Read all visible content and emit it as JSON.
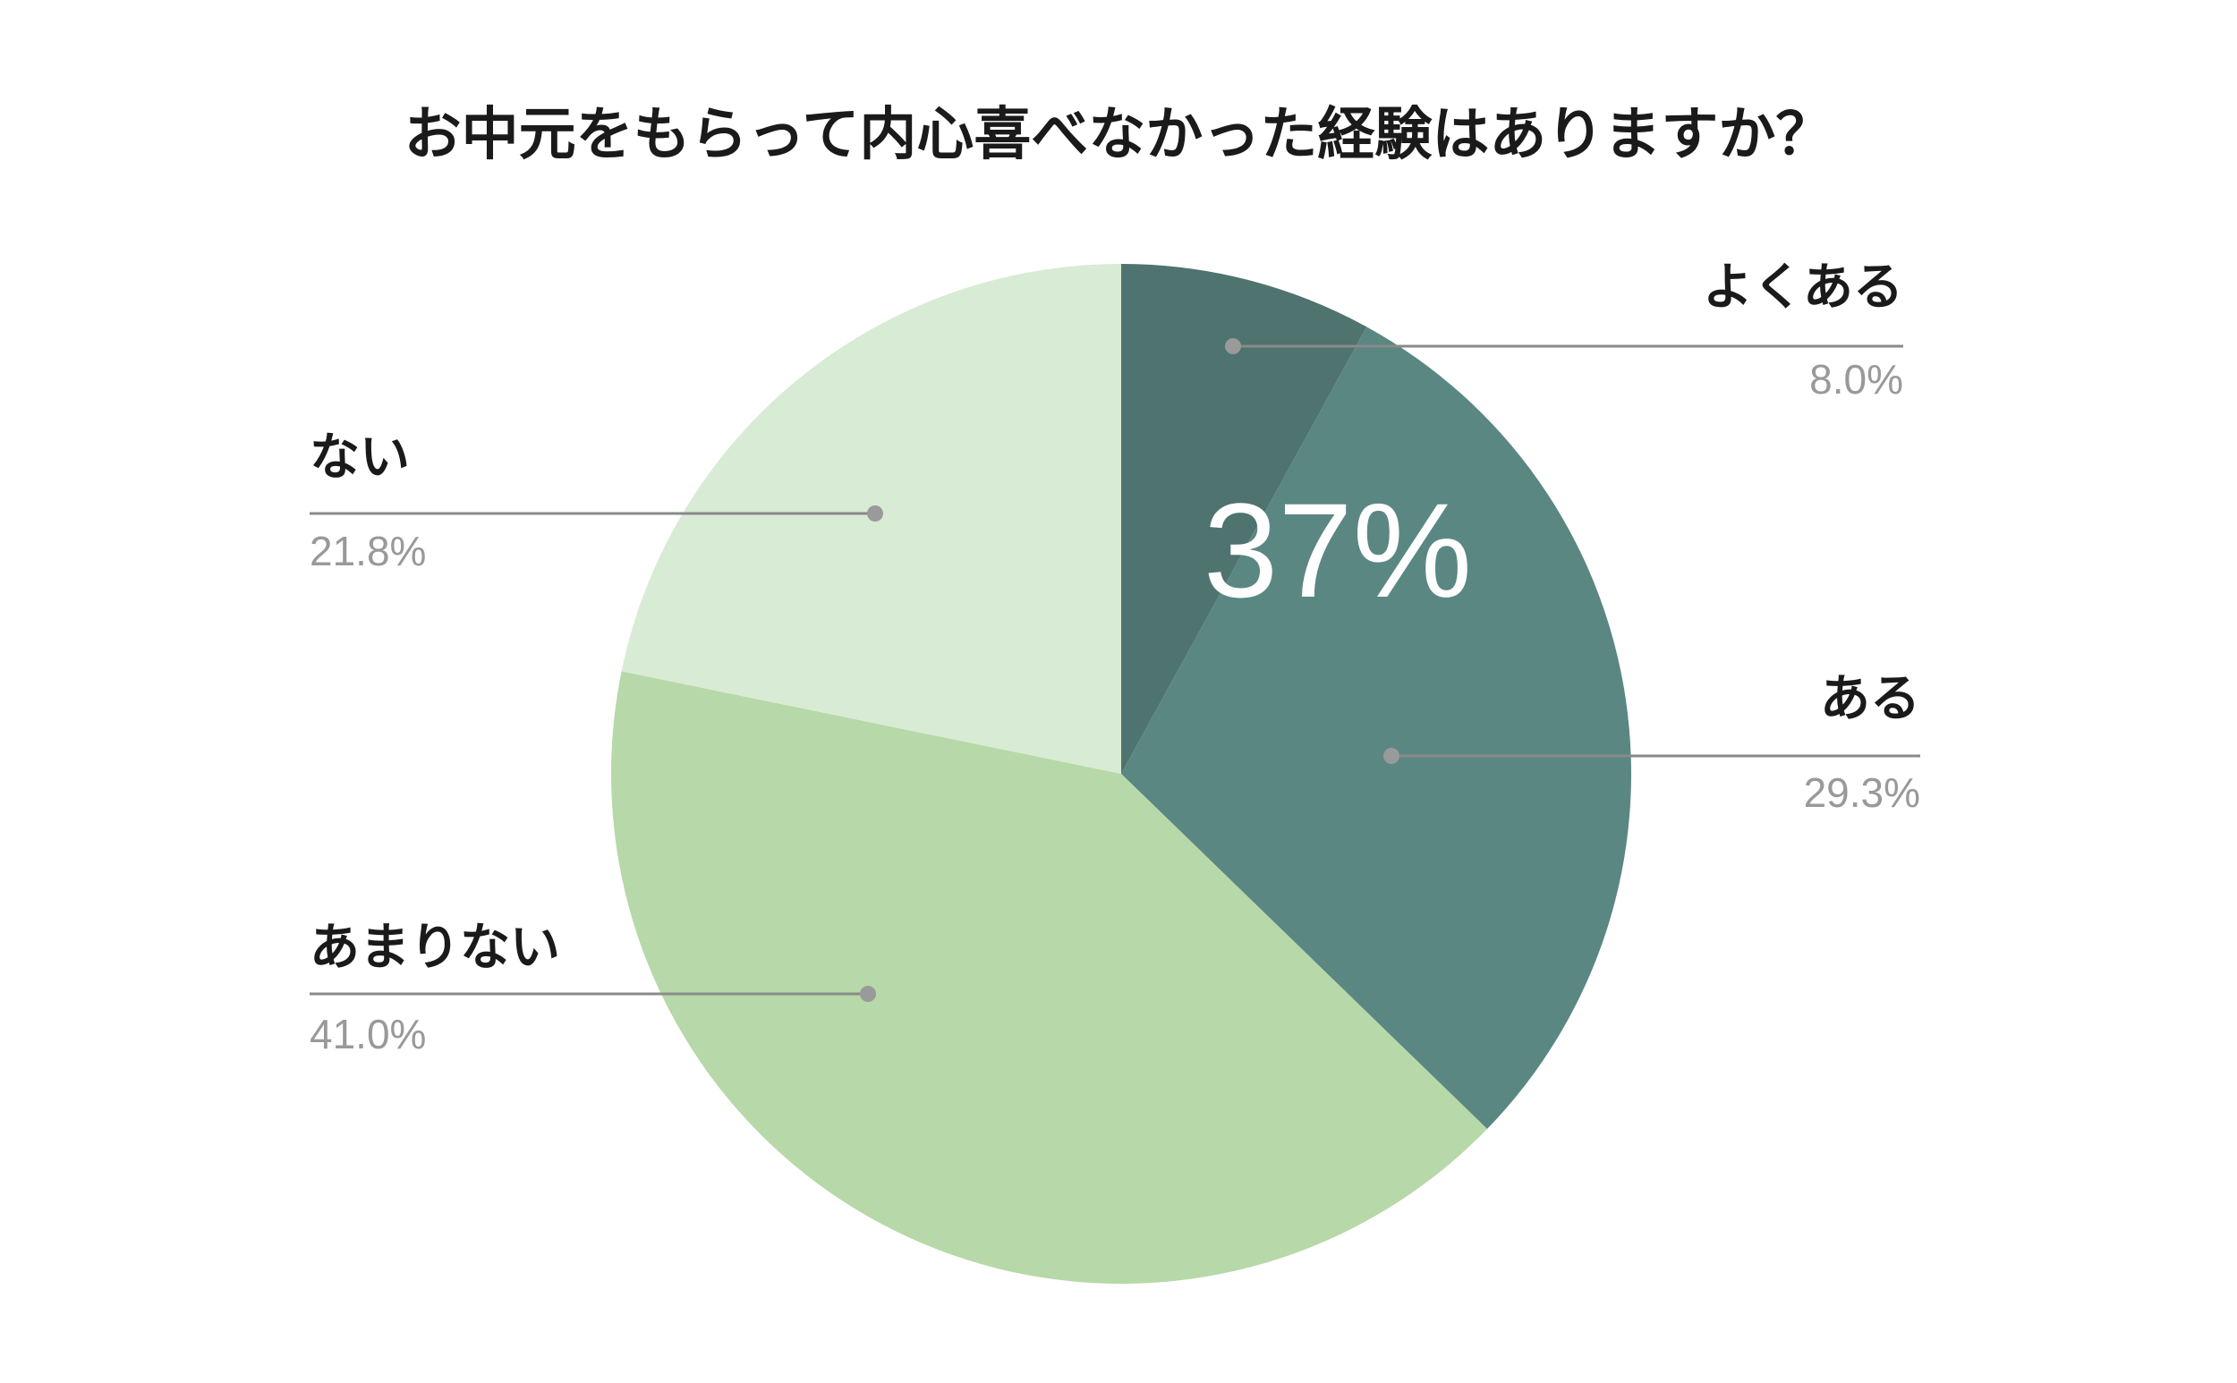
{
  "chart_data": {
    "type": "pie",
    "title": "お中元をもらって内心喜べなかった経験はありますか？",
    "categories": [
      "よくある",
      "ある",
      "あまりない",
      "ない"
    ],
    "values": [
      8.0,
      29.3,
      41.0,
      21.8
    ],
    "value_labels": [
      "8.0%",
      "29.3%",
      "41.0%",
      "21.8%"
    ],
    "colors": [
      "#4f736f",
      "#5b8783",
      "#b7d8a8",
      "#d8ebd4"
    ],
    "start_angle": "12 o'clock",
    "direction": "clockwise",
    "annotation": "37%",
    "legend": "none"
  }
}
